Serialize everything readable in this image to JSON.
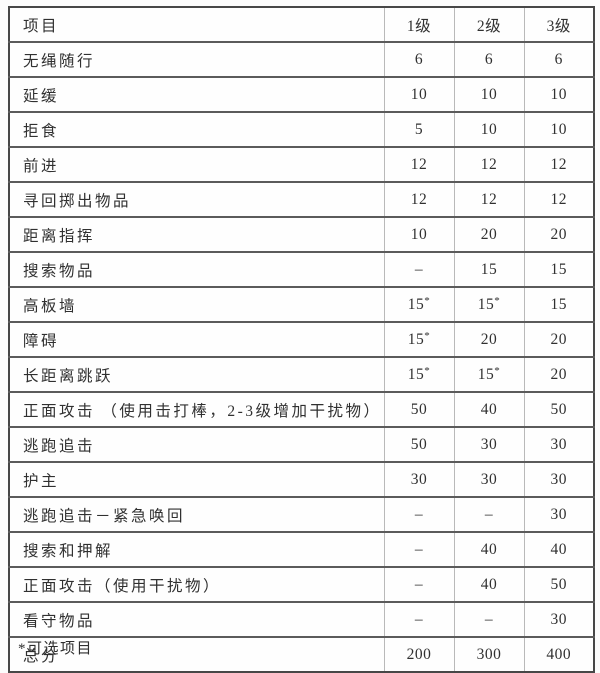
{
  "colors": {
    "page_background": "#fcfcfc",
    "table_background": "#fefefe",
    "outer_border": "#474747",
    "horizontal_rule": "#5b5b5b",
    "vertical_rule": "#b9b9b9",
    "text": "#303030"
  },
  "table": {
    "columns": [
      "项目",
      "1级",
      "2级",
      "3级"
    ],
    "rows": [
      {
        "label": "无绳随行",
        "values": [
          "6",
          "6",
          "6"
        ]
      },
      {
        "label": "延缓",
        "values": [
          "10",
          "10",
          "10"
        ]
      },
      {
        "label": "拒食",
        "values": [
          "5",
          "10",
          "10"
        ]
      },
      {
        "label": "前进",
        "values": [
          "12",
          "12",
          "12"
        ]
      },
      {
        "label": "寻回掷出物品",
        "values": [
          "12",
          "12",
          "12"
        ]
      },
      {
        "label": "距离指挥",
        "values": [
          "10",
          "20",
          "20"
        ]
      },
      {
        "label": "搜索物品",
        "values": [
          "–",
          "15",
          "15"
        ]
      },
      {
        "label": "高板墙",
        "values": [
          "15*",
          "15*",
          "15"
        ]
      },
      {
        "label": "障碍",
        "values": [
          "15*",
          "20",
          "20"
        ]
      },
      {
        "label": "长距离跳跃",
        "values": [
          "15*",
          "15*",
          "20"
        ]
      },
      {
        "label": "正面攻击 （使用击打棒，2-3级增加干扰物）",
        "values": [
          "50",
          "40",
          "50"
        ]
      },
      {
        "label": "逃跑追击",
        "values": [
          "50",
          "30",
          "30"
        ]
      },
      {
        "label": "护主",
        "values": [
          "30",
          "30",
          "30"
        ]
      },
      {
        "label": "逃跑追击－紧急唤回",
        "values": [
          "–",
          "–",
          "30"
        ]
      },
      {
        "label": "搜索和押解",
        "values": [
          "–",
          "40",
          "40"
        ]
      },
      {
        "label": "正面攻击（使用干扰物）",
        "values": [
          "–",
          "40",
          "50"
        ]
      },
      {
        "label": "看守物品",
        "values": [
          "–",
          "–",
          "30"
        ]
      },
      {
        "label": "总分",
        "values": [
          "200",
          "300",
          "400"
        ]
      }
    ]
  },
  "footnote": "*可选项目"
}
